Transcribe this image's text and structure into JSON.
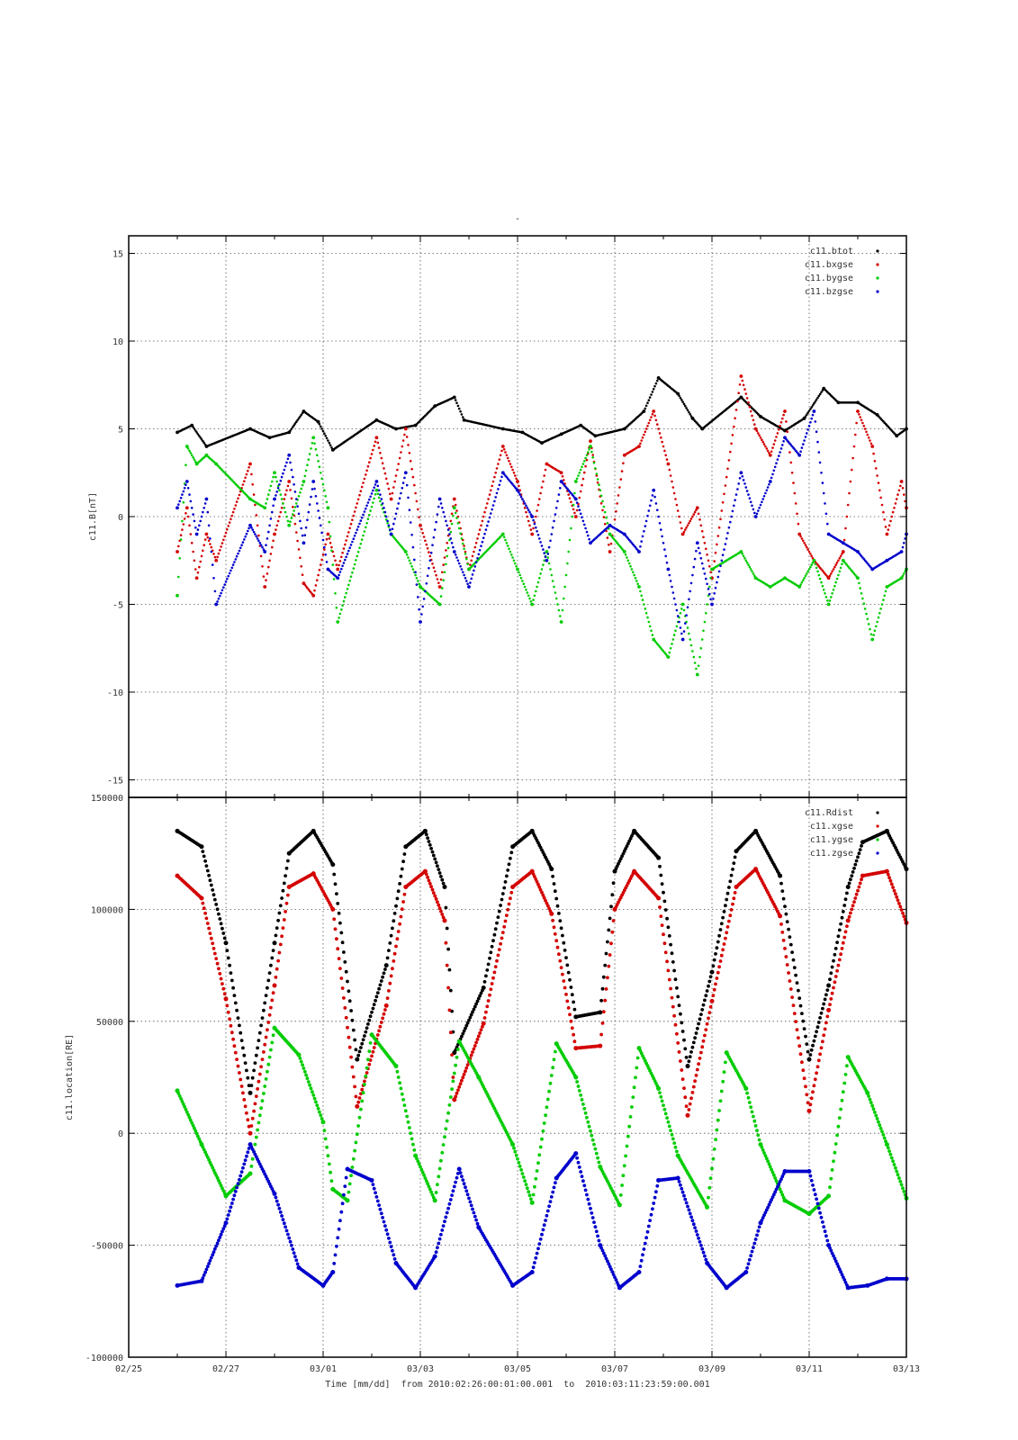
{
  "chart_data": [
    {
      "type": "scatter",
      "title": "-",
      "ylabel": "c11.B[nT]",
      "ylim": [
        -16,
        16
      ],
      "yticks": [
        -15,
        -10,
        -5,
        0,
        5,
        10,
        15
      ],
      "xlim": [
        "02/25",
        "03/13"
      ],
      "grid": true,
      "legend_position": "top-right",
      "series": [
        {
          "name": "c11.btot",
          "color": "#000000",
          "x": [
            1.0,
            1.3,
            1.6,
            2.5,
            2.9,
            3.3,
            3.6,
            3.9,
            4.2,
            5.1,
            5.5,
            5.9,
            6.3,
            6.7,
            6.9,
            7.7,
            8.1,
            8.5,
            8.9,
            9.3,
            9.6,
            10.2,
            10.6,
            10.9,
            11.3,
            11.6,
            11.8,
            12.6,
            13.0,
            13.5,
            13.9,
            14.3,
            14.6,
            15.0,
            15.4,
            15.8,
            16.0
          ],
          "y": [
            4.8,
            5.2,
            4.0,
            5.0,
            4.5,
            4.8,
            6.0,
            5.4,
            3.8,
            5.5,
            5.0,
            5.2,
            6.3,
            6.8,
            5.5,
            5.0,
            4.8,
            4.2,
            4.7,
            5.2,
            4.6,
            5.0,
            6.0,
            7.9,
            7.0,
            5.6,
            5.0,
            6.8,
            5.7,
            4.9,
            5.6,
            7.3,
            6.5,
            6.5,
            5.8,
            4.6,
            5.0
          ]
        },
        {
          "name": "c11.bxgse",
          "color": "#d40000",
          "x": [
            1.0,
            1.2,
            1.4,
            1.6,
            1.8,
            2.5,
            2.8,
            3.0,
            3.3,
            3.6,
            3.8,
            4.1,
            4.3,
            5.1,
            5.4,
            5.7,
            6.0,
            6.4,
            6.7,
            7.0,
            7.7,
            8.0,
            8.3,
            8.6,
            8.9,
            9.2,
            9.5,
            9.9,
            10.2,
            10.5,
            10.8,
            11.1,
            11.4,
            11.7,
            12.0,
            12.6,
            12.9,
            13.2,
            13.5,
            13.8,
            14.1,
            14.4,
            14.7,
            15.0,
            15.3,
            15.6,
            15.9,
            16.0
          ],
          "y": [
            -2.0,
            0.5,
            -3.5,
            -1.0,
            -2.5,
            3.0,
            -4.0,
            -1.0,
            2.0,
            -3.8,
            -4.5,
            -1.0,
            -3.0,
            4.5,
            1.0,
            5.0,
            -0.5,
            -4.0,
            1.0,
            -3.0,
            4.0,
            2.0,
            -1.0,
            3.0,
            2.5,
            0.0,
            4.3,
            -2.0,
            3.5,
            4.0,
            6.0,
            3.0,
            -1.0,
            0.5,
            -3.5,
            8.0,
            5.0,
            3.5,
            6.0,
            -1.0,
            -2.5,
            -3.5,
            -2.0,
            6.0,
            4.0,
            -1.0,
            2.0,
            0.5
          ]
        },
        {
          "name": "c11.bygse",
          "color": "#00cc00",
          "x": [
            1.0,
            1.2,
            1.4,
            1.6,
            1.8,
            2.5,
            2.8,
            3.0,
            3.3,
            3.6,
            3.8,
            4.1,
            4.3,
            5.1,
            5.4,
            5.7,
            6.0,
            6.4,
            6.7,
            7.0,
            7.7,
            8.0,
            8.3,
            8.6,
            8.9,
            9.2,
            9.5,
            9.9,
            10.2,
            10.5,
            10.8,
            11.1,
            11.4,
            11.7,
            12.0,
            12.6,
            12.9,
            13.2,
            13.5,
            13.8,
            14.1,
            14.4,
            14.7,
            15.0,
            15.3,
            15.6,
            15.9,
            16.0
          ],
          "y": [
            -4.5,
            4.0,
            3.0,
            3.5,
            3.0,
            1.0,
            0.5,
            2.5,
            -0.5,
            2.0,
            4.5,
            0.5,
            -6.0,
            1.5,
            -1.0,
            -2.0,
            -4.0,
            -5.0,
            0.5,
            -3.0,
            -1.0,
            -3.0,
            -5.0,
            -2.0,
            -6.0,
            2.0,
            4.0,
            -1.0,
            -2.0,
            -4.0,
            -7.0,
            -8.0,
            -5.0,
            -9.0,
            -3.0,
            -2.0,
            -3.5,
            -4.0,
            -3.5,
            -4.0,
            -2.5,
            -5.0,
            -2.5,
            -3.5,
            -7.0,
            -4.0,
            -3.5,
            -3.0
          ]
        },
        {
          "name": "c11.bzgse",
          "color": "#0000cc",
          "x": [
            1.0,
            1.2,
            1.4,
            1.6,
            1.8,
            2.5,
            2.8,
            3.0,
            3.3,
            3.6,
            3.8,
            4.1,
            4.3,
            5.1,
            5.4,
            5.7,
            6.0,
            6.4,
            6.7,
            7.0,
            7.7,
            8.0,
            8.3,
            8.6,
            8.9,
            9.2,
            9.5,
            9.9,
            10.2,
            10.5,
            10.8,
            11.1,
            11.4,
            11.7,
            12.0,
            12.6,
            12.9,
            13.2,
            13.5,
            13.8,
            14.1,
            14.4,
            14.7,
            15.0,
            15.3,
            15.6,
            15.9,
            16.0
          ],
          "y": [
            0.5,
            2.0,
            -1.0,
            1.0,
            -5.0,
            -0.5,
            -2.0,
            1.0,
            3.5,
            -1.5,
            2.0,
            -3.0,
            -3.5,
            2.0,
            -1.0,
            2.5,
            -6.0,
            1.0,
            -2.0,
            -4.0,
            2.5,
            1.5,
            0.0,
            -2.5,
            2.0,
            1.0,
            -1.5,
            -0.5,
            -1.0,
            -2.0,
            1.5,
            -3.0,
            -7.0,
            -1.5,
            -5.0,
            2.5,
            0.0,
            2.0,
            4.5,
            3.5,
            6.0,
            -1.0,
            -1.5,
            -2.0,
            -3.0,
            -2.5,
            -2.0,
            -1.0
          ]
        }
      ]
    },
    {
      "type": "scatter",
      "ylabel": "c11.location[RE]",
      "xlabel": "Time [mm/dd]  from 2010:02:26:00:01:00.001  to  2010:03:11:23:59:00.001",
      "ylim": [
        -100000,
        150000
      ],
      "yticks": [
        -100000,
        -50000,
        0,
        50000,
        100000,
        150000
      ],
      "xlim": [
        "02/25",
        "03/13"
      ],
      "xticks": [
        "02/25",
        "02/27",
        "03/01",
        "03/03",
        "03/05",
        "03/07",
        "03/09",
        "03/11",
        "03/13"
      ],
      "grid": true,
      "legend_position": "top-right",
      "series": [
        {
          "name": "c11.Rdist",
          "color": "#000000",
          "x": [
            1.0,
            1.5,
            2.0,
            2.5,
            3.0,
            3.3,
            3.8,
            4.2,
            4.7,
            5.3,
            5.7,
            6.1,
            6.5,
            6.7,
            7.3,
            7.9,
            8.3,
            8.7,
            9.2,
            9.7,
            10.0,
            10.4,
            10.9,
            11.5,
            12.0,
            12.5,
            12.9,
            13.4,
            14.0,
            14.4,
            14.8,
            15.1,
            15.6,
            16.0
          ],
          "y": [
            135000,
            128000,
            85000,
            18000,
            85000,
            125000,
            135000,
            120000,
            33000,
            75000,
            128000,
            135000,
            110000,
            36000,
            65000,
            128000,
            135000,
            118000,
            52000,
            54000,
            117000,
            135000,
            123000,
            30000,
            72000,
            126000,
            135000,
            115000,
            33000,
            66000,
            110000,
            130000,
            135000,
            118000
          ]
        },
        {
          "name": "c11.xgse",
          "color": "#d40000",
          "x": [
            1.0,
            1.5,
            2.0,
            2.5,
            3.0,
            3.3,
            3.8,
            4.2,
            4.7,
            5.3,
            5.7,
            6.1,
            6.5,
            6.7,
            7.3,
            7.9,
            8.3,
            8.7,
            9.2,
            9.7,
            10.0,
            10.4,
            10.9,
            11.5,
            12.0,
            12.5,
            12.9,
            13.4,
            14.0,
            14.4,
            14.8,
            15.1,
            15.6,
            16.0
          ],
          "y": [
            115000,
            105000,
            60000,
            0,
            66000,
            110000,
            116000,
            100000,
            12000,
            57000,
            110000,
            117000,
            95000,
            15000,
            49000,
            110000,
            117000,
            98000,
            38000,
            39000,
            100000,
            117000,
            105000,
            8000,
            59000,
            110000,
            118000,
            97000,
            10000,
            55000,
            95000,
            115000,
            117000,
            94000
          ]
        },
        {
          "name": "c11.ygse",
          "color": "#00cc00",
          "x": [
            1.0,
            1.5,
            2.0,
            2.5,
            3.0,
            3.5,
            4.0,
            4.2,
            4.5,
            5.0,
            5.5,
            5.9,
            6.3,
            6.8,
            7.2,
            7.9,
            8.3,
            8.8,
            9.2,
            9.7,
            10.1,
            10.5,
            10.9,
            11.3,
            11.9,
            12.3,
            12.7,
            13.0,
            13.5,
            14.0,
            14.4,
            14.8,
            15.2,
            15.6,
            16.0
          ],
          "y": [
            19000,
            -5000,
            -28000,
            -18000,
            47000,
            35000,
            5000,
            -25000,
            -30000,
            44000,
            30000,
            -10000,
            -30000,
            41000,
            25000,
            -5000,
            -31000,
            40000,
            25000,
            -15000,
            -32000,
            38000,
            20000,
            -10000,
            -33000,
            36000,
            20000,
            -5000,
            -30000,
            -36000,
            -28000,
            34000,
            18000,
            -5000,
            -29000
          ]
        },
        {
          "name": "c11.zgse",
          "color": "#0000cc",
          "x": [
            1.0,
            1.5,
            2.0,
            2.5,
            3.0,
            3.5,
            4.0,
            4.2,
            4.5,
            5.0,
            5.5,
            5.9,
            6.3,
            6.8,
            7.2,
            7.9,
            8.3,
            8.8,
            9.2,
            9.7,
            10.1,
            10.5,
            10.9,
            11.3,
            11.9,
            12.3,
            12.7,
            13.0,
            13.5,
            14.0,
            14.4,
            14.8,
            15.2,
            15.6,
            16.0
          ],
          "y": [
            -68000,
            -66000,
            -40000,
            -5000,
            -27000,
            -60000,
            -68000,
            -62000,
            -16000,
            -21000,
            -58000,
            -69000,
            -55000,
            -16000,
            -42000,
            -68000,
            -62000,
            -20000,
            -9000,
            -50000,
            -69000,
            -62000,
            -21000,
            -20000,
            -58000,
            -69000,
            -62000,
            -40000,
            -17000,
            -17000,
            -50000,
            -69000,
            -68000,
            -65000,
            -65000
          ]
        }
      ]
    }
  ]
}
